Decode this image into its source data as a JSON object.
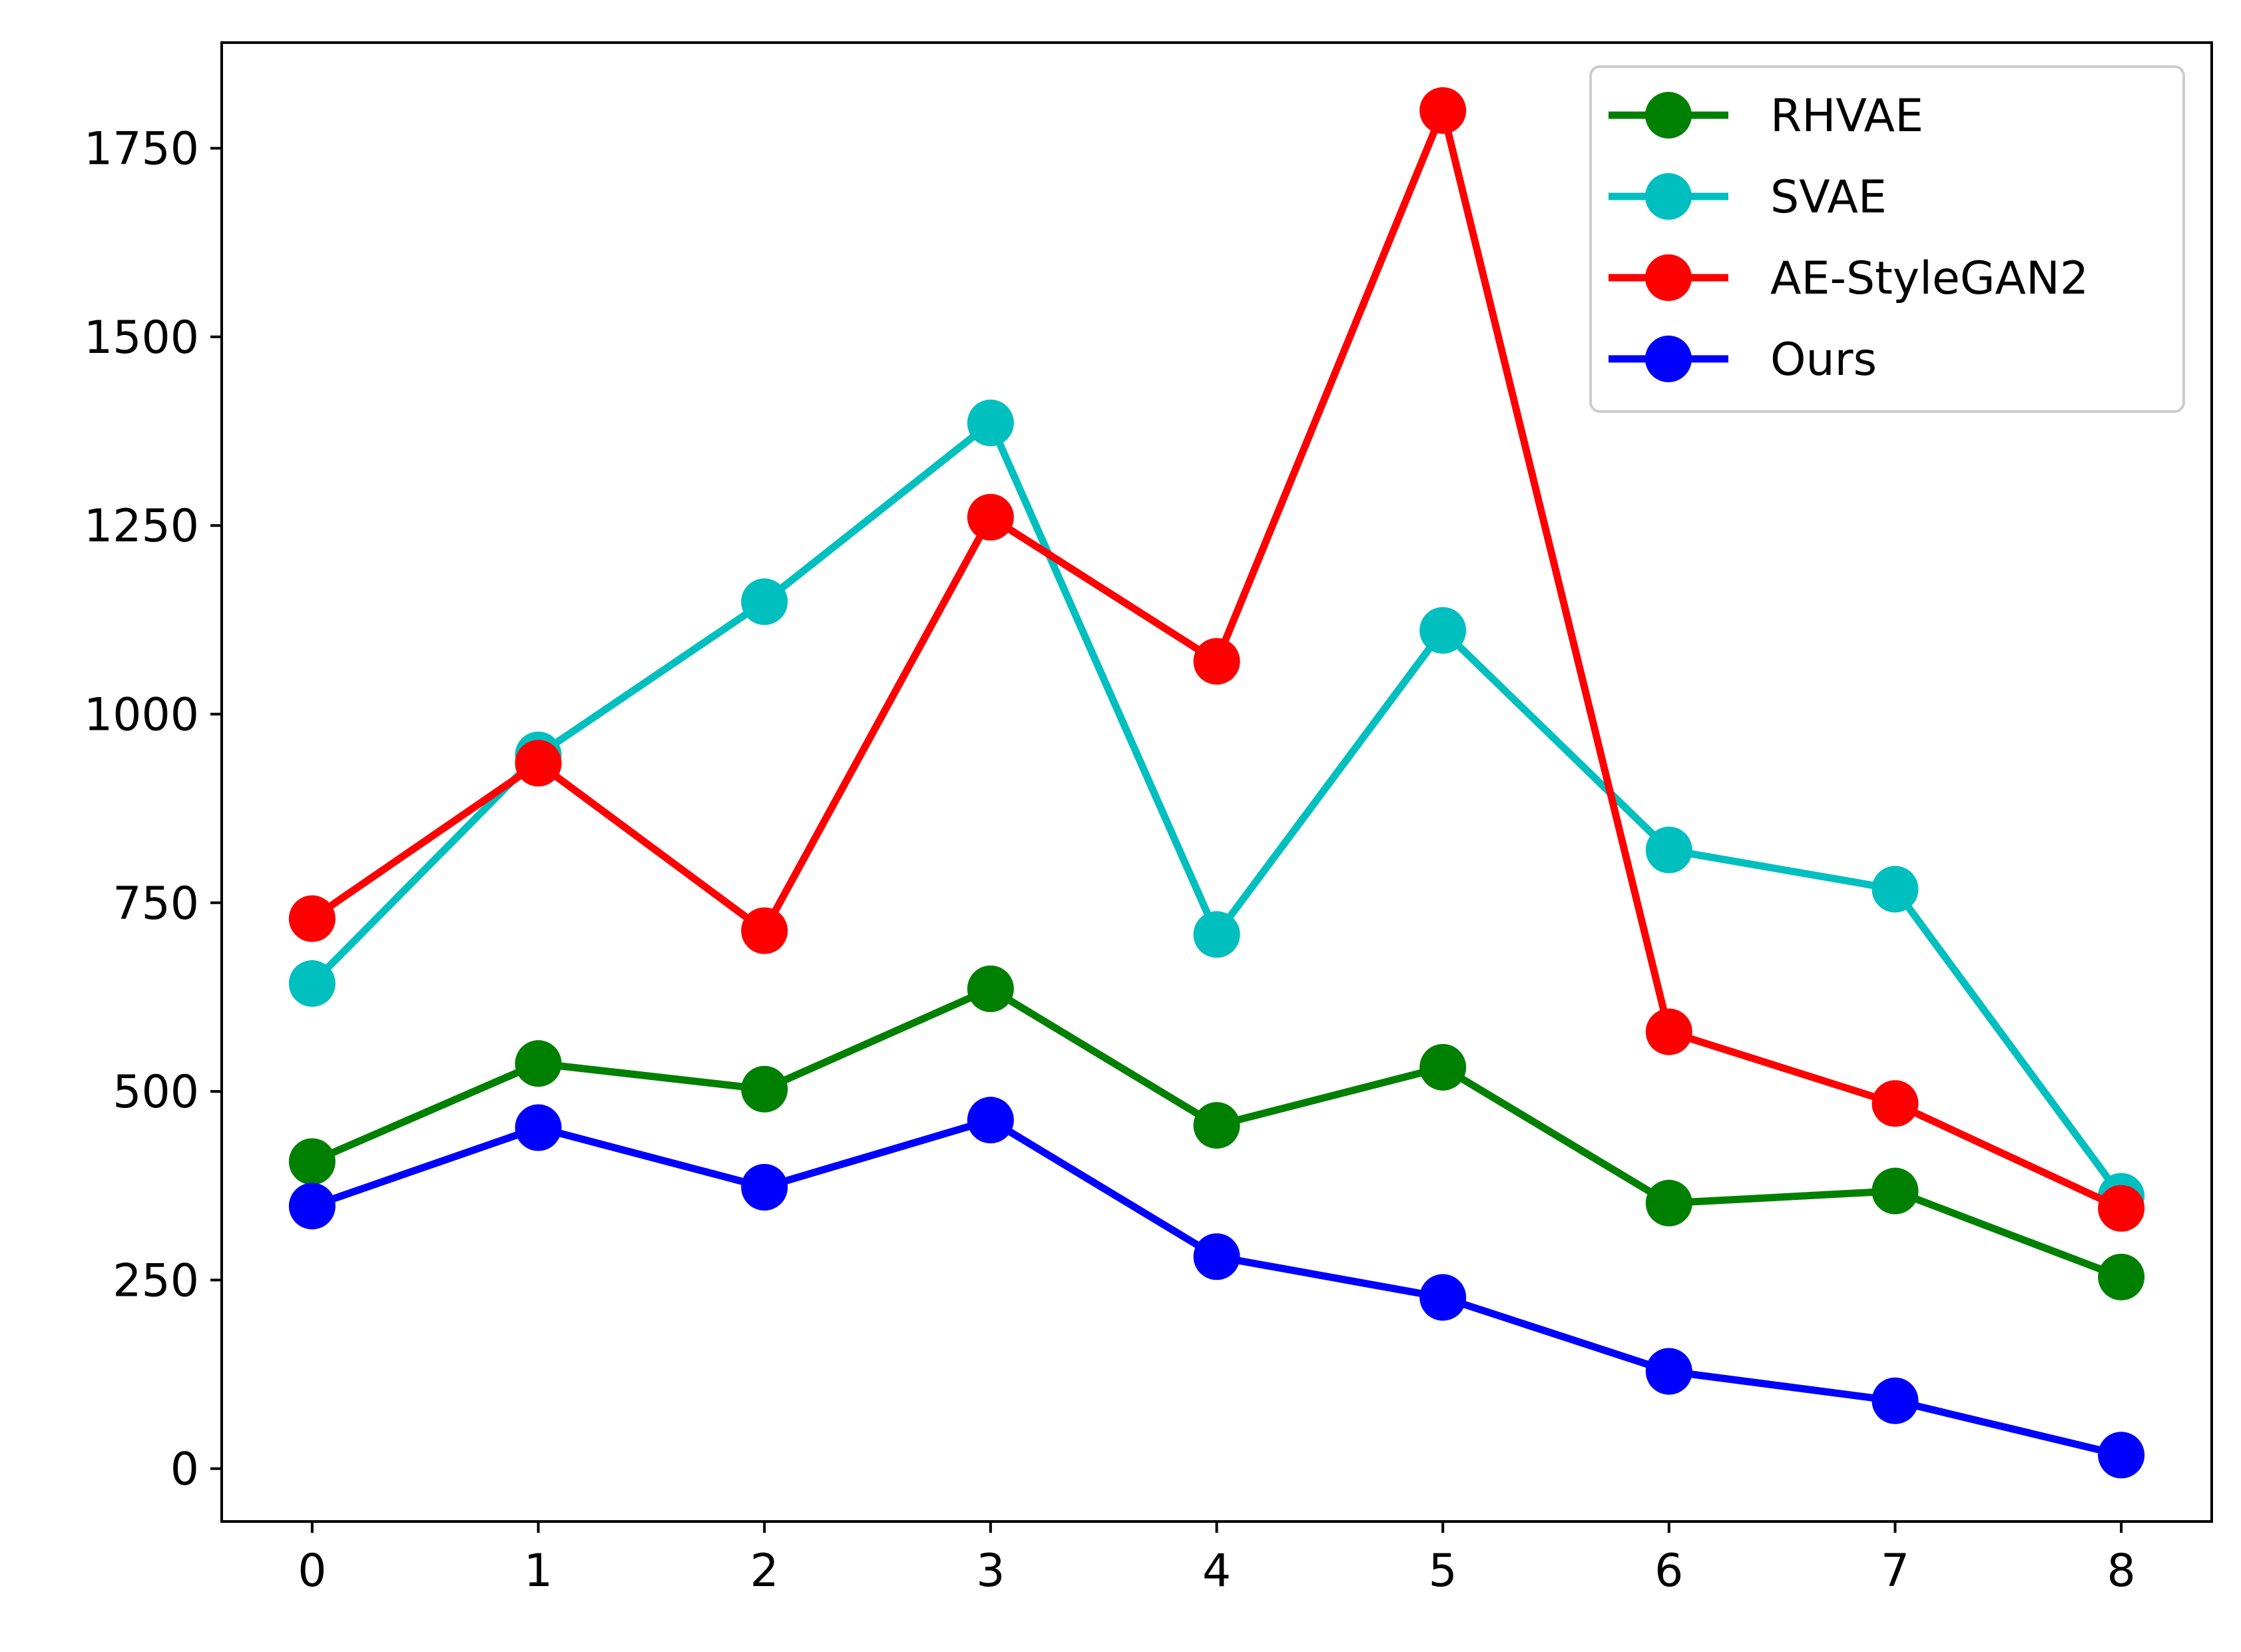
{
  "chart_data": {
    "type": "line",
    "title": "",
    "xlabel": "",
    "ylabel": "",
    "x": [
      0,
      1,
      2,
      3,
      4,
      5,
      6,
      7,
      8
    ],
    "xlim": [
      -0.4,
      8.4
    ],
    "ylim": [
      -70,
      1890
    ],
    "xticks": [
      "0",
      "1",
      "2",
      "3",
      "4",
      "5",
      "6",
      "7",
      "8"
    ],
    "yticks": [
      0,
      250,
      500,
      750,
      1000,
      1250,
      1500,
      1750
    ],
    "ytick_labels": [
      "0",
      "250",
      "500",
      "750",
      "1000",
      "1250",
      "1500",
      "1750"
    ],
    "grid": false,
    "legend_position": "top-right",
    "series": [
      {
        "name": "RHVAE",
        "color": "#008000",
        "marker": "circle",
        "values": [
          407,
          537,
          503,
          636,
          455,
          532,
          352,
          368,
          254
        ]
      },
      {
        "name": "SVAE",
        "color": "#00bfbf",
        "marker": "circle",
        "values": [
          643,
          946,
          1149,
          1386,
          708,
          1111,
          820,
          768,
          361
        ]
      },
      {
        "name": "AE-StyleGAN2",
        "color": "#ff0000",
        "marker": "circle",
        "values": [
          729,
          935,
          713,
          1261,
          1070,
          1800,
          579,
          484,
          345
        ]
      },
      {
        "name": "Ours",
        "color": "#0000ff",
        "marker": "circle",
        "values": [
          348,
          452,
          373,
          462,
          281,
          227,
          129,
          90,
          18
        ]
      }
    ]
  }
}
